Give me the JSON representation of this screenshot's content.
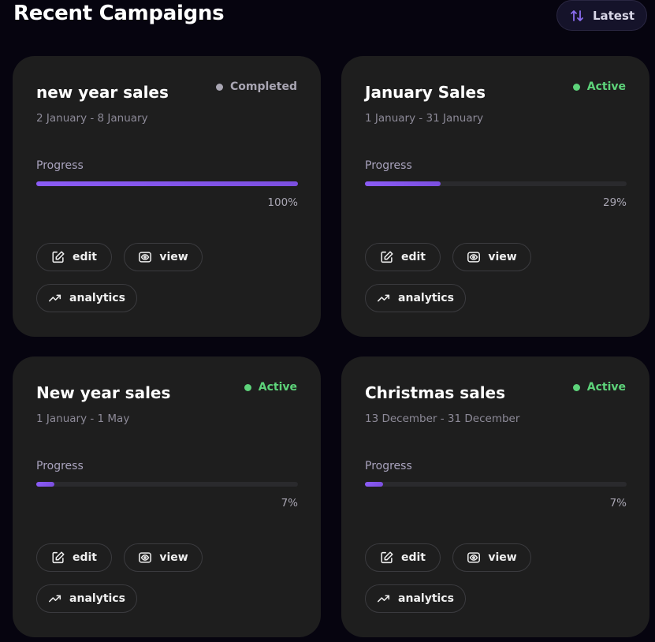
{
  "header": {
    "title": "Recent Campaigns",
    "sort_button": "Latest"
  },
  "campaigns": [
    {
      "title": "new year sales",
      "dates": "2 January - 8 January",
      "status": "Completed",
      "status_color": "#a9a6b3",
      "progress_caption": "Progress",
      "progress": 100,
      "progress_label": "100%",
      "actions": [
        "edit",
        "view",
        "analytics"
      ]
    },
    {
      "title": "January Sales",
      "dates": "1 January - 31 January",
      "status": "Active",
      "status_color": "#5dd37a",
      "progress_caption": "Progress",
      "progress": 29,
      "progress_label": "29%",
      "actions": [
        "edit",
        "view",
        "analytics"
      ]
    },
    {
      "title": "New year sales",
      "dates": "1 January - 1 May",
      "status": "Active",
      "status_color": "#5dd37a",
      "progress_caption": "Progress",
      "progress": 7,
      "progress_label": "7%",
      "actions": [
        "edit",
        "view",
        "analytics"
      ]
    },
    {
      "title": "Christmas sales",
      "dates": "13 December - 31 December",
      "status": "Active",
      "status_color": "#5dd37a",
      "progress_caption": "Progress",
      "progress": 7,
      "progress_label": "7%",
      "actions": [
        "edit",
        "view",
        "analytics"
      ]
    }
  ]
}
